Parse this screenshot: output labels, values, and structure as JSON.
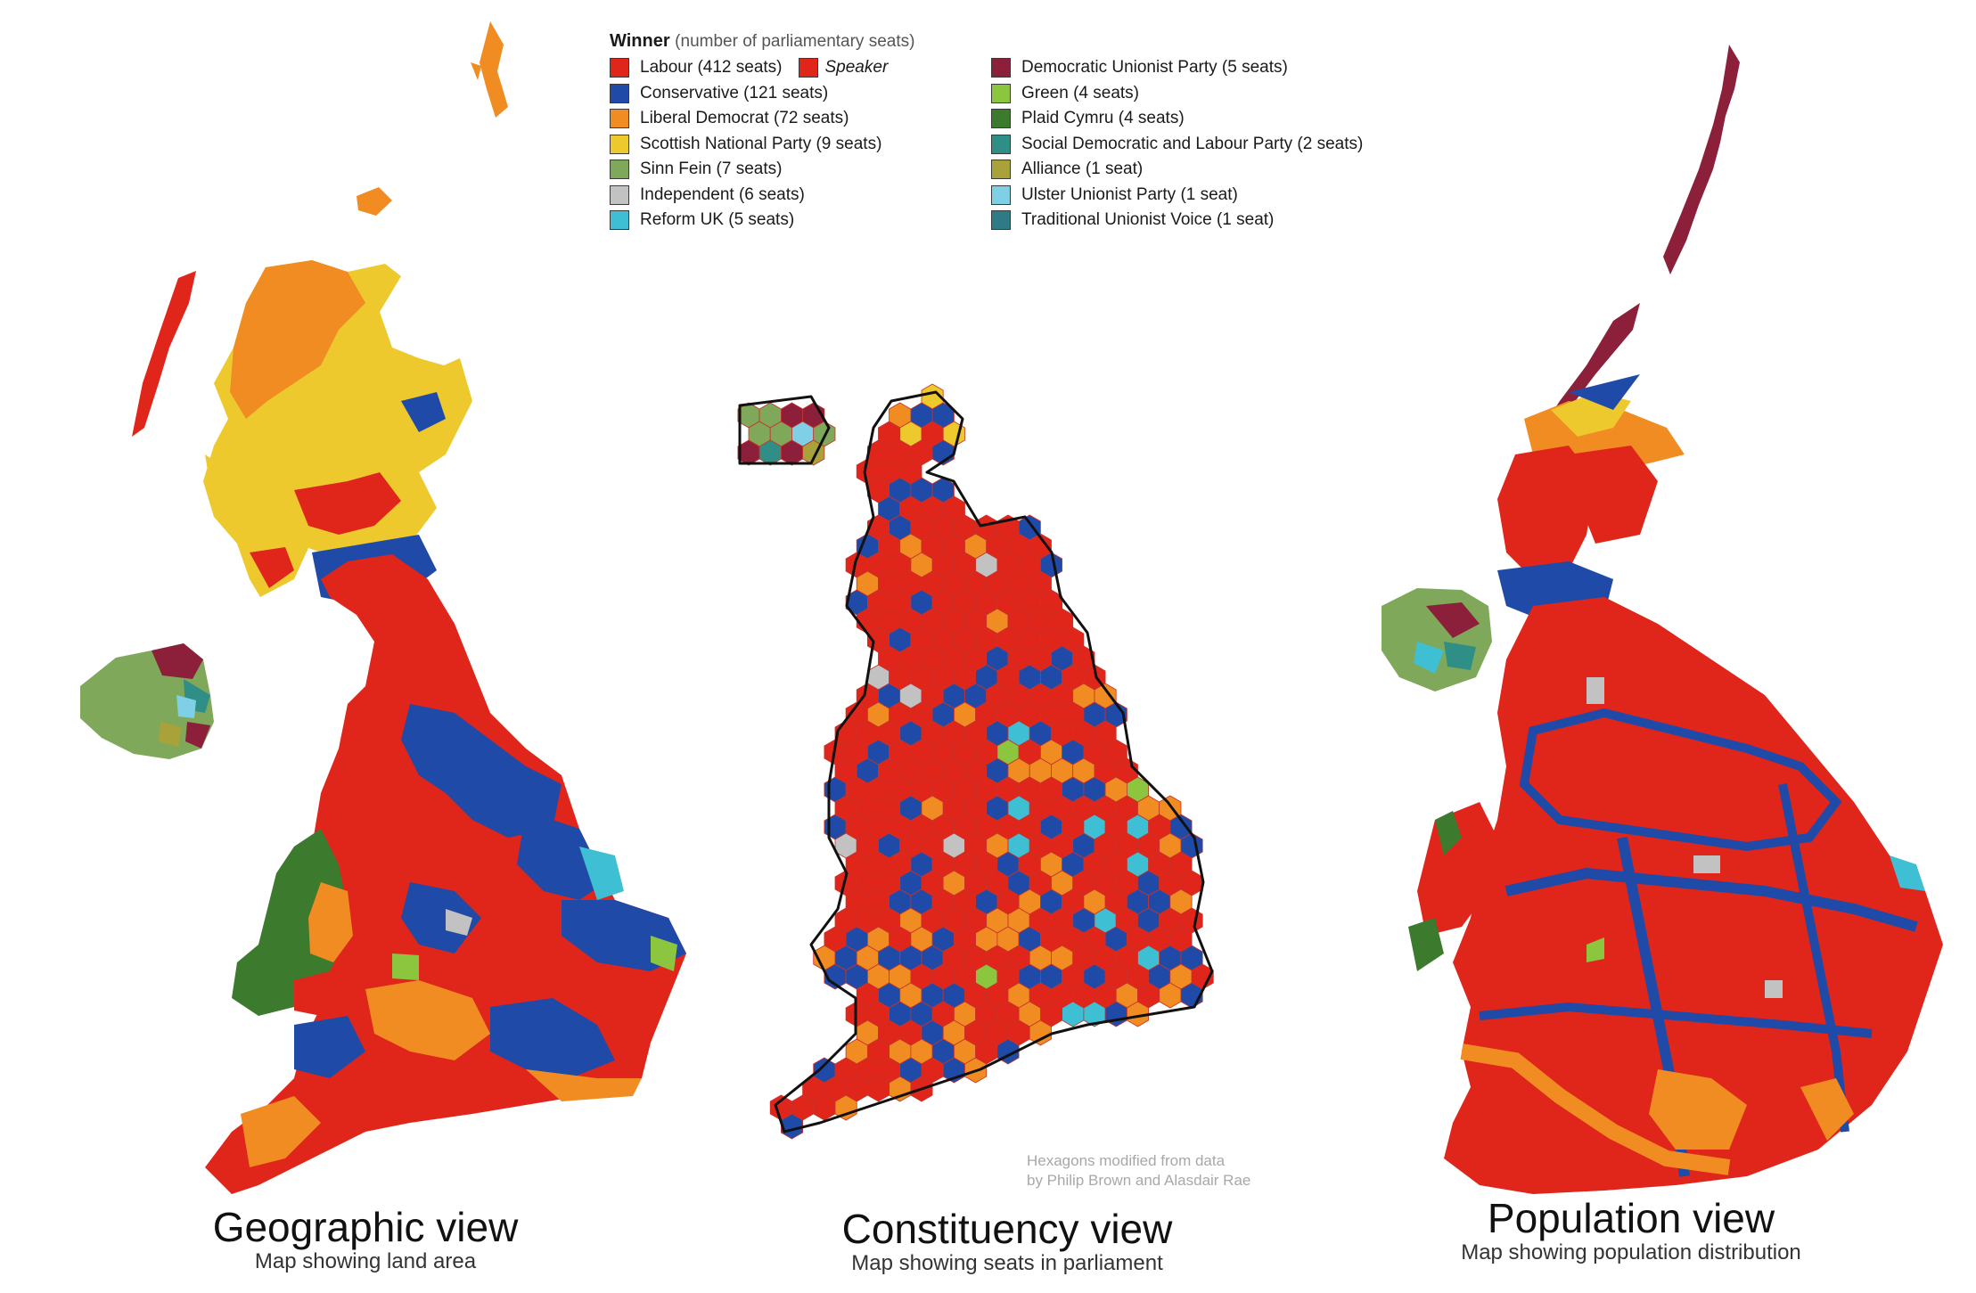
{
  "legend": {
    "title": "Winner",
    "subtitle": "(number of parliamentary seats)",
    "speaker_label": "Speaker",
    "left_items": [
      {
        "label": "Labour (412 seats)",
        "color": "#e0261b",
        "party": "labour"
      },
      {
        "label": "Conservative (121 seats)",
        "color": "#1f4aa8",
        "party": "conservative"
      },
      {
        "label": "Liberal Democrat (72 seats)",
        "color": "#f08c22",
        "party": "libdem"
      },
      {
        "label": "Scottish National Party (9 seats)",
        "color": "#edc92e",
        "party": "snp"
      },
      {
        "label": "Sinn Fein (7 seats)",
        "color": "#7fa85a",
        "party": "sinnfein"
      },
      {
        "label": "Independent (6 seats)",
        "color": "#c2c2c2",
        "party": "independent"
      },
      {
        "label": "Reform UK (5 seats)",
        "color": "#3fbfd4",
        "party": "reform"
      }
    ],
    "right_items": [
      {
        "label": "Democratic Unionist Party (5 seats)",
        "color": "#8c1f3a",
        "party": "dup"
      },
      {
        "label": "Green (4 seats)",
        "color": "#8cc63f",
        "party": "green"
      },
      {
        "label": "Plaid Cymru (4 seats)",
        "color": "#3c7a2e",
        "party": "plaid"
      },
      {
        "label": "Social Democratic and Labour Party (2 seats)",
        "color": "#2f8f86",
        "party": "sdlp"
      },
      {
        "label": "Alliance (1 seat)",
        "color": "#a9a23a",
        "party": "alliance"
      },
      {
        "label": "Ulster Unionist Party (1 seat)",
        "color": "#7fcfe6",
        "party": "uup"
      },
      {
        "label": "Traditional Unionist Voice (1 seat)",
        "color": "#2e7b86",
        "party": "tuv"
      }
    ]
  },
  "colors": {
    "labour": "#e0261b",
    "conservative": "#1f4aa8",
    "libdem": "#f08c22",
    "snp": "#edc92e",
    "sinnfein": "#7fa85a",
    "independent": "#c2c2c2",
    "reform": "#3fbfd4",
    "dup": "#8c1f3a",
    "green": "#8cc63f",
    "plaid": "#3c7a2e",
    "sdlp": "#2f8f86",
    "alliance": "#a9a23a",
    "uup": "#7fcfe6",
    "tuv": "#2e7b86",
    "speaker": "#e0261b"
  },
  "panels": {
    "geographic": {
      "title": "Geographic view",
      "subtitle": "Map showing land area"
    },
    "constituency": {
      "title": "Constituency view",
      "subtitle": "Map showing seats in parliament"
    },
    "population": {
      "title": "Population view",
      "subtitle": "Map showing population distribution"
    }
  },
  "credit": {
    "line1": "Hexagons modified from data",
    "line2": "by Philip Brown and Alasdair Rae"
  }
}
